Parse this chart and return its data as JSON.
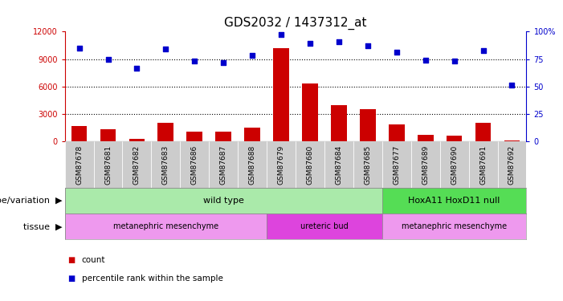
{
  "title": "GDS2032 / 1437312_at",
  "samples": [
    "GSM87678",
    "GSM87681",
    "GSM87682",
    "GSM87683",
    "GSM87686",
    "GSM87687",
    "GSM87688",
    "GSM87679",
    "GSM87680",
    "GSM87684",
    "GSM87685",
    "GSM87677",
    "GSM87689",
    "GSM87690",
    "GSM87691",
    "GSM87692"
  ],
  "counts": [
    1700,
    1350,
    300,
    2000,
    1100,
    1050,
    1500,
    10200,
    6300,
    4000,
    3500,
    1900,
    750,
    600,
    2000,
    150
  ],
  "percentile": [
    85,
    75,
    67,
    84,
    73,
    72,
    78,
    97,
    89,
    91,
    87,
    81,
    74,
    73,
    83,
    51
  ],
  "bar_color": "#cc0000",
  "dot_color": "#0000cc",
  "ylim_left": [
    0,
    12000
  ],
  "ylim_right": [
    0,
    100
  ],
  "yticks_left": [
    0,
    3000,
    6000,
    9000,
    12000
  ],
  "yticks_right": [
    0,
    25,
    50,
    75,
    100
  ],
  "yticklabels_right": [
    "0",
    "25",
    "50",
    "75",
    "100%"
  ],
  "grid_values": [
    3000,
    6000,
    9000
  ],
  "background_color": "#ffffff",
  "plot_bg_color": "#ffffff",
  "sample_cell_color": "#cccccc",
  "genotype_row": {
    "label": "genotype/variation",
    "groups": [
      {
        "text": "wild type",
        "start": 0,
        "end": 10,
        "color": "#aaeaaa"
      },
      {
        "text": "HoxA11 HoxD11 null",
        "start": 11,
        "end": 15,
        "color": "#55dd55"
      }
    ]
  },
  "tissue_row": {
    "label": "tissue",
    "groups": [
      {
        "text": "metanephric mesenchyme",
        "start": 0,
        "end": 6,
        "color": "#ee99ee"
      },
      {
        "text": "ureteric bud",
        "start": 7,
        "end": 10,
        "color": "#dd44dd"
      },
      {
        "text": "metanephric mesenchyme",
        "start": 11,
        "end": 15,
        "color": "#ee99ee"
      }
    ]
  },
  "legend_count_color": "#cc0000",
  "legend_pct_color": "#0000cc",
  "title_fontsize": 11,
  "tick_fontsize": 7,
  "label_fontsize": 8.5,
  "row_label_fontsize": 8,
  "sample_fontsize": 6.5
}
